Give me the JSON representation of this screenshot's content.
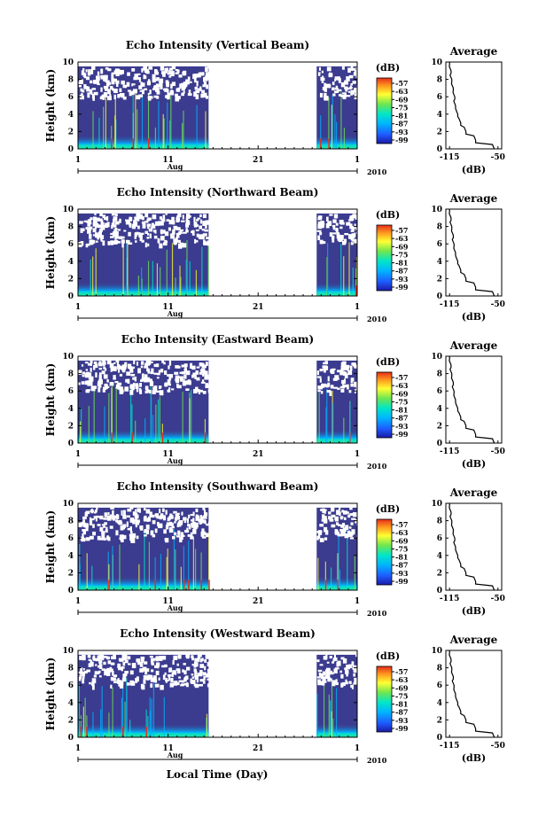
{
  "figure": {
    "xlabel": "Local Time (Day)",
    "ylabel": "Height (km)",
    "month": "Aug",
    "year": "2010",
    "x_ticks": [
      "1",
      "11",
      "21",
      "1"
    ],
    "y_ticks": [
      "0",
      "2",
      "4",
      "6",
      "8",
      "10"
    ],
    "colorbar_unit": "(dB)",
    "colorbar_ticks": [
      "-57",
      "-63",
      "-69",
      "-75",
      "-81",
      "-87",
      "-93",
      "-99"
    ],
    "profile_title": "Average",
    "profile_xlabel": "(dB)",
    "profile_x_ticks": [
      "-115",
      "-50"
    ],
    "colors": {
      "background": "#3b3b8f",
      "scale": [
        "#1a1aa6",
        "#1e5cff",
        "#00b4ff",
        "#00e6c8",
        "#6ee650",
        "#ffff33",
        "#ff9a1f",
        "#e62e1a"
      ]
    }
  },
  "chart_data": [
    {
      "type": "heatmap",
      "title": "Echo Intensity (Vertical Beam)",
      "xlim": [
        1,
        32
      ],
      "ylim": [
        0,
        10
      ],
      "data_gaps_days": [
        [
          15.5,
          27.5
        ]
      ],
      "color_range_db": [
        -99,
        -57
      ],
      "average_profile": {
        "height_km": [
          0,
          1,
          2,
          3,
          4,
          5,
          6,
          7,
          8,
          9,
          10
        ],
        "intensity_db": [
          -55,
          -80,
          -93,
          -100,
          -104,
          -107,
          -108,
          -110,
          -112,
          -113,
          -115
        ]
      }
    },
    {
      "type": "heatmap",
      "title": "Echo Intensity (Northward Beam)",
      "xlim": [
        1,
        32
      ],
      "ylim": [
        0,
        10
      ],
      "data_gaps_days": [
        [
          15.5,
          27.5
        ]
      ],
      "color_range_db": [
        -99,
        -57
      ],
      "average_profile": {
        "height_km": [
          0,
          1,
          2,
          3,
          4,
          5,
          6,
          7,
          8,
          9,
          10
        ],
        "intensity_db": [
          -55,
          -80,
          -93,
          -100,
          -104,
          -107,
          -109,
          -110,
          -112,
          -113,
          -115
        ]
      }
    },
    {
      "type": "heatmap",
      "title": "Echo Intensity (Eastward Beam)",
      "xlim": [
        1,
        32
      ],
      "ylim": [
        0,
        10
      ],
      "data_gaps_days": [
        [
          15.5,
          27.5
        ]
      ],
      "color_range_db": [
        -99,
        -57
      ],
      "average_profile": {
        "height_km": [
          0,
          1,
          2,
          3,
          4,
          5,
          6,
          7,
          8,
          9,
          10
        ],
        "intensity_db": [
          -55,
          -80,
          -93,
          -100,
          -104,
          -107,
          -109,
          -110,
          -112,
          -113,
          -115
        ]
      }
    },
    {
      "type": "heatmap",
      "title": "Echo Intensity (Southward Beam)",
      "xlim": [
        1,
        32
      ],
      "ylim": [
        0,
        10
      ],
      "data_gaps_days": [
        [
          15.5,
          27.5
        ]
      ],
      "color_range_db": [
        -99,
        -57
      ],
      "average_profile": {
        "height_km": [
          0,
          1,
          2,
          3,
          4,
          5,
          6,
          7,
          8,
          9,
          10
        ],
        "intensity_db": [
          -55,
          -80,
          -93,
          -100,
          -104,
          -107,
          -108,
          -110,
          -112,
          -113,
          -115
        ]
      }
    },
    {
      "type": "heatmap",
      "title": "Echo Intensity (Westward Beam)",
      "xlim": [
        1,
        32
      ],
      "ylim": [
        0,
        10
      ],
      "data_gaps_days": [
        [
          15.5,
          27.5
        ]
      ],
      "color_range_db": [
        -99,
        -57
      ],
      "average_profile": {
        "height_km": [
          0,
          1,
          2,
          3,
          4,
          5,
          6,
          7,
          8,
          9,
          10
        ],
        "intensity_db": [
          -55,
          -80,
          -93,
          -100,
          -104,
          -107,
          -109,
          -110,
          -112,
          -113,
          -115
        ]
      }
    }
  ]
}
